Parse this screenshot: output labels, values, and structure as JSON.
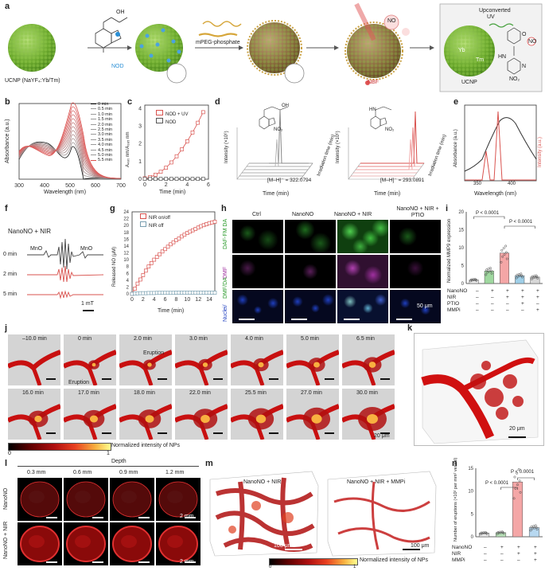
{
  "panel_a": {
    "label": "a",
    "ucnp_label": "UCNP (NaYF₄:Yb/Tm)",
    "nod_label": "NOD",
    "mpeg_label": "mPEG-phosphate",
    "nbf_label": "NBF",
    "no_label": "NO",
    "upconverted_label": "Upconverted",
    "uv_label": "UV",
    "ucnp_small_label": "UCNP",
    "yb_label": "Yb",
    "tm_label": "Tm",
    "no2_label": "NO₂",
    "oh_label": "OH",
    "o_label": "O",
    "n_label": "N",
    "hn_label": "HN"
  },
  "panel_b": {
    "label": "b",
    "legend": [
      "0 min",
      "0.5 min",
      "1.0 min",
      "1.5 min",
      "2.0 min",
      "2.5 min",
      "3.0 min",
      "3.5 min",
      "4.0 min",
      "4.5 min",
      "5.0 min",
      "5.5 min"
    ],
    "xlabel": "Wavelength (nm)",
    "ylabel": "Absorbance (a.u.)",
    "xticks": [
      "300",
      "400",
      "500",
      "600",
      "700"
    ]
  },
  "panel_c": {
    "label": "c",
    "ylabel": "A₄₈₀ nm/A₃₈₅ nm",
    "xlabel": "Time (min)",
    "legend": [
      "NOD + UV",
      "NOD"
    ],
    "xticks": [
      "0",
      "2",
      "4",
      "6"
    ],
    "yticks": [
      "0",
      "1",
      "2",
      "3",
      "4"
    ]
  },
  "panel_d": {
    "label": "d",
    "left_mass": "[M–H]⁻ = 322.0794",
    "right_mass": "[M–H]⁻ = 293.0891",
    "ylabel": "Intensity (×10⁶)",
    "xlabel": "Time (min)",
    "zlabel": "Irradiation time (min)",
    "xticks": [
      "4.0",
      "4.5",
      "5.0",
      "5.5",
      "6.0"
    ],
    "zticks": [
      "0",
      "1",
      "2",
      "3",
      "4",
      "5"
    ],
    "oh_label": "OH",
    "o_label": "O",
    "n_label": "N",
    "hn_label": "HN",
    "no2_label": "NO₂"
  },
  "panel_e": {
    "label": "e",
    "ylabel_left": "Absorbance (a.u.)",
    "ylabel_right": "Intensity (a.u.)",
    "xlabel": "Wavelength (nm)",
    "xticks": [
      "350",
      "400"
    ]
  },
  "panel_f": {
    "label": "f",
    "condition": "NanoNO + NIR",
    "rows": [
      "0 min",
      "2 min",
      "5 min"
    ],
    "mno_left": "MnO",
    "mno_right": "MnO",
    "scale": "1 mT"
  },
  "panel_g": {
    "label": "g",
    "ylabel": "Released NO (μM)",
    "xlabel": "Time (min)",
    "legend": [
      "NIR on/off",
      "NIR off"
    ],
    "xticks": [
      "0",
      "2",
      "4",
      "6",
      "8",
      "10",
      "12",
      "14"
    ],
    "yticks": [
      "0",
      "2",
      "4",
      "6",
      "8",
      "10",
      "12",
      "14",
      "16",
      "18",
      "20",
      "22",
      "24"
    ]
  },
  "panel_h": {
    "label": "h",
    "columns": [
      "Ctrl",
      "NanoNO",
      "NanoNO + NIR",
      "NanoNO + NIR + PTIO"
    ],
    "rows": [
      "DAF-FM DA",
      "DAF-FM",
      "Nuclei/DAF-FM"
    ],
    "row_text": {
      "green": "DAF-FM DA",
      "magenta": "DMF",
      "merge_a": "Nuclei/",
      "merge_b": "DMF/DA"
    },
    "scale": "50 μm"
  },
  "panel_i": {
    "label": "i",
    "ylabel": "Normalized MMP9 expression",
    "p1": "P < 0.0001",
    "p2": "P < 0.0001",
    "yticks": [
      "0",
      "5",
      "10",
      "15",
      "20"
    ],
    "rows": [
      "NanoNO",
      "NIR",
      "PTIO",
      "MMPi"
    ],
    "table": [
      [
        "–",
        "+",
        "+",
        "+",
        "+"
      ],
      [
        "–",
        "–",
        "+",
        "+",
        "+"
      ],
      [
        "–",
        "–",
        "–",
        "+",
        "–"
      ],
      [
        "–",
        "–",
        "–",
        "–",
        "+"
      ]
    ]
  },
  "panel_j": {
    "label": "j",
    "top_times": [
      "–10.0 min",
      "0 min",
      "2.0 min",
      "3.0 min",
      "4.0 min",
      "5.0 min",
      "6.5 min"
    ],
    "bottom_times": [
      "16.0 min",
      "17.0 min",
      "18.0 min",
      "22.0 min",
      "25.5 min",
      "27.0 min",
      "30.0 min"
    ],
    "eruption_label": "Eruption",
    "eruption_arrow": "Eruption",
    "colorbar_label": "Normalized intensity of NPs",
    "cb_min": "0",
    "cb_max": "1",
    "scale": "20 μm"
  },
  "panel_k": {
    "label": "k",
    "scale": "20 μm"
  },
  "panel_l": {
    "label": "l",
    "depth_title": "Depth",
    "depths": [
      "0.3 mm",
      "0.6 mm",
      "0.9 mm",
      "1.2 mm"
    ],
    "rows": [
      "NanoNO",
      "NanoNO + NIR"
    ],
    "scale_top": "2 mm",
    "scale_bottom": "2 mm"
  },
  "panel_m": {
    "label": "m",
    "left_title": "NanoNO + NIR",
    "right_title": "NanoNO + NIR + MMPi",
    "scale_left": "100 μm",
    "scale_right": "100 μm",
    "colorbar_label": "Normalized intensity of NPs",
    "cb_min": "0",
    "cb_max": "1"
  },
  "panel_n": {
    "label": "n",
    "ylabel": "Number of eruptions (×10² per mm² vessel)",
    "p1": "P < 0.0001",
    "p2": "P < 0.0001",
    "yticks": [
      "0",
      "5",
      "10",
      "15"
    ],
    "rows": [
      "NanoNO",
      "NIR",
      "MMPi"
    ],
    "table": [
      [
        "–",
        "+",
        "+",
        "+"
      ],
      [
        "–",
        "–",
        "+",
        "+"
      ],
      [
        "–",
        "–",
        "–",
        "+"
      ]
    ]
  },
  "chart_data": [
    {
      "type": "line",
      "panel": "c",
      "x": [
        0,
        0.5,
        1,
        1.5,
        2,
        2.5,
        3,
        3.5,
        4,
        4.5,
        5,
        5.5
      ],
      "series": [
        {
          "name": "NOD + UV",
          "values": [
            0.05,
            0.12,
            0.25,
            0.42,
            0.65,
            0.95,
            1.3,
            1.7,
            2.15,
            2.65,
            3.2,
            3.8
          ]
        },
        {
          "name": "NOD",
          "values": [
            0.02,
            0.02,
            0.02,
            0.02,
            0.02,
            0.02,
            0.02,
            0.02,
            0.02,
            0.02,
            0.02,
            0.02
          ]
        }
      ],
      "xlabel": "Time (min)",
      "ylim": [
        0,
        4.2
      ],
      "xlim": [
        0,
        6
      ]
    },
    {
      "type": "line",
      "panel": "g",
      "x": [
        0,
        0.5,
        1,
        1.5,
        2,
        2.5,
        3,
        3.5,
        4,
        4.5,
        5,
        5.5,
        6,
        6.5,
        7,
        7.5,
        8,
        8.5,
        9,
        9.5,
        10,
        10.5,
        11,
        11.5,
        12,
        12.5,
        13,
        13.5,
        14,
        14.5,
        15
      ],
      "series": [
        {
          "name": "NIR on/off",
          "values": [
            0,
            1.5,
            3,
            4.2,
            5.5,
            6.8,
            8,
            9,
            10,
            10.8,
            11.6,
            12.4,
            13.1,
            13.8,
            14.5,
            15.1,
            15.7,
            16.2,
            16.8,
            17.3,
            17.8,
            18.2,
            18.6,
            19,
            19.4,
            19.8,
            20.1,
            20.4,
            20.7,
            20.9,
            21.1
          ]
        },
        {
          "name": "NIR off",
          "values": [
            0,
            0.1,
            0.15,
            0.2,
            0.2,
            0.2,
            0.25,
            0.25,
            0.25,
            0.3,
            0.3,
            0.3,
            0.3,
            0.3,
            0.3,
            0.3,
            0.35,
            0.35,
            0.35,
            0.35,
            0.35,
            0.35,
            0.35,
            0.35,
            0.35,
            0.35,
            0.35,
            0.35,
            0.35,
            0.35,
            0.35
          ]
        }
      ],
      "xlabel": "Time (min)",
      "ylim": [
        0,
        24
      ],
      "xlim": [
        0,
        15
      ]
    },
    {
      "type": "bar",
      "panel": "i",
      "categories": [
        "1",
        "2",
        "3",
        "4",
        "5"
      ],
      "values": [
        1,
        3.5,
        8.5,
        2.2,
        1.8
      ],
      "ylim": [
        0,
        20
      ]
    },
    {
      "type": "bar",
      "panel": "n",
      "categories": [
        "1",
        "2",
        "3",
        "4"
      ],
      "values": [
        0.8,
        0.9,
        12,
        2
      ],
      "ylim": [
        0,
        15
      ]
    }
  ]
}
